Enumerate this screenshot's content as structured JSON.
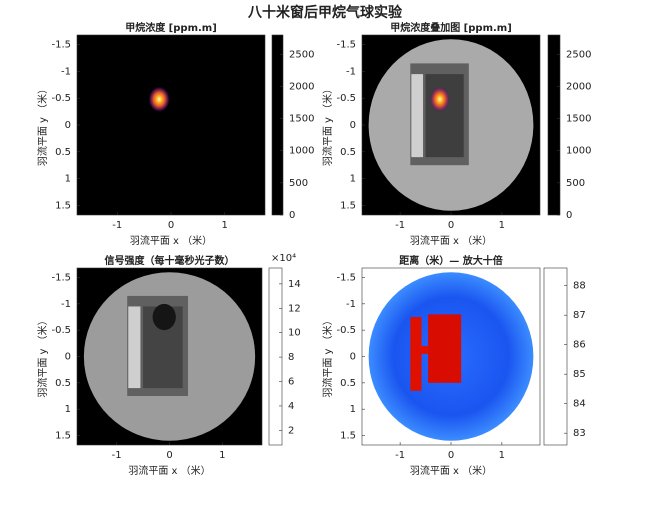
{
  "title": "八十米窗后甲烷气球实验",
  "chart_data": [
    {
      "type": "heatmap",
      "title": "甲烷浓度 [ppm.m]",
      "xlabel": "羽流平面 x （米）",
      "ylabel": "羽流平面 y （米）",
      "xlim": [
        -1.75,
        1.75
      ],
      "ylim": [
        1.68,
        -1.68
      ],
      "xticks": [
        -1,
        0,
        1
      ],
      "yticks": [
        -1.5,
        -1,
        -0.5,
        0,
        0.5,
        1,
        1.5
      ],
      "scene": "plume",
      "colormap": "inferno",
      "clim": [
        0,
        2800
      ],
      "cticks": [
        0,
        500,
        1000,
        1500,
        2000,
        2500
      ]
    },
    {
      "type": "heatmap",
      "title": "甲烷浓度叠加图 [ppm.m]",
      "xlabel": "羽流平面 x （米）",
      "ylabel": "羽流平面 y （米）",
      "xlim": [
        -1.75,
        1.75
      ],
      "ylim": [
        1.68,
        -1.68
      ],
      "xticks": [
        -1,
        0,
        1
      ],
      "yticks": [
        -1.5,
        -1,
        -0.5,
        0,
        0.5,
        1,
        1.5
      ],
      "scene": "overlay",
      "colormap": "inferno",
      "clim": [
        0,
        2800
      ],
      "cticks": [
        0,
        500,
        1000,
        1500,
        2000,
        2500
      ]
    },
    {
      "type": "heatmap",
      "title": "信号强度（每十毫秒光子数）",
      "xlabel": "羽流平面 x （米）",
      "ylabel": "羽流平面 y （米）",
      "xlim": [
        -1.75,
        1.75
      ],
      "ylim": [
        1.68,
        -1.68
      ],
      "xticks": [
        -1,
        0,
        1
      ],
      "yticks": [
        -1.5,
        -1,
        -0.5,
        0,
        0.5,
        1,
        1.5
      ],
      "scene": "intensity",
      "colormap": "gray",
      "clim": [
        0.8,
        15.3
      ],
      "cticks": [
        2,
        4,
        6,
        8,
        10,
        12,
        14
      ],
      "cexponent": "×10⁴"
    },
    {
      "type": "heatmap",
      "title": "距离（米）— 放大十倍",
      "xlabel": "羽流平面 x （米）",
      "ylabel": "羽流平面 y （米）",
      "xlim": [
        -1.75,
        1.75
      ],
      "ylim": [
        1.68,
        -1.68
      ],
      "xticks": [
        -1,
        0,
        1
      ],
      "yticks": [
        -1.5,
        -1,
        -0.5,
        0,
        0.5,
        1,
        1.5
      ],
      "scene": "range",
      "colormap": "jet",
      "clim": [
        82.6,
        88.6
      ],
      "cticks": [
        83,
        84,
        85,
        86,
        87,
        88
      ]
    }
  ]
}
